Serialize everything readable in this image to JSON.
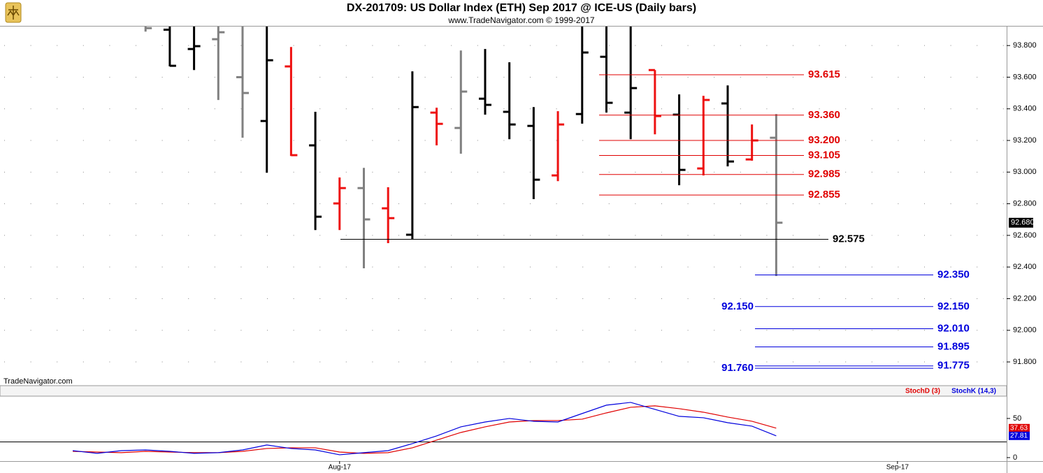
{
  "chart_data": [
    {
      "type": "ohlc",
      "title": "DX-201709:  US Dollar Index (ETH) Sep 2017 @ ICE-US  (Daily bars)",
      "subtitle": "www.TradeNavigator.com © 1999-2017",
      "watermark": "TradeNavigator.com",
      "ylim": [
        91.65,
        93.92
      ],
      "yticks": [
        {
          "value": 91.8,
          "label": "91.800"
        },
        {
          "value": 92.0,
          "label": "92.000"
        },
        {
          "value": 92.2,
          "label": "92.200"
        },
        {
          "value": 92.4,
          "label": "92.400"
        },
        {
          "value": 92.6,
          "label": "92.600"
        },
        {
          "value": 92.8,
          "label": "92.800"
        },
        {
          "value": 93.0,
          "label": "93.000"
        },
        {
          "value": 93.2,
          "label": "93.200"
        },
        {
          "value": 93.4,
          "label": "93.400"
        },
        {
          "value": 93.6,
          "label": "93.600"
        },
        {
          "value": 93.8,
          "label": "93.800"
        }
      ],
      "xlim": [
        -3,
        38.5
      ],
      "xticks": [
        {
          "value": 11,
          "label": "Aug-17"
        },
        {
          "value": 34,
          "label": "Sep-17"
        }
      ],
      "grid": true,
      "open": [
        null,
        null,
        null,
        93.93,
        93.9,
        93.778,
        93.84,
        93.6,
        93.323,
        93.668,
        93.169,
        92.802,
        92.899,
        92.771,
        92.604,
        93.376,
        93.279,
        93.464,
        93.381,
        93.292,
        92.979,
        93.367,
        93.729,
        93.376,
        93.645,
        93.363,
        93.023,
        93.434,
        93.08,
        93.217
      ],
      "high": [
        null,
        null,
        null,
        93.95,
        93.95,
        93.95,
        93.95,
        93.95,
        93.95,
        93.791,
        93.381,
        92.966,
        93.027,
        92.904,
        93.637,
        93.407,
        93.769,
        93.778,
        93.694,
        93.411,
        93.385,
        93.95,
        93.95,
        93.95,
        93.645,
        93.491,
        93.482,
        93.548,
        93.301,
        93.367
      ],
      "low": [
        null,
        null,
        null,
        93.888,
        93.668,
        93.645,
        93.456,
        93.217,
        92.996,
        93.102,
        92.634,
        92.634,
        92.392,
        92.551,
        92.577,
        93.169,
        93.116,
        93.363,
        93.208,
        92.829,
        92.943,
        93.306,
        93.376,
        93.208,
        93.239,
        92.917,
        92.979,
        93.036,
        93.072,
        92.343
      ],
      "close": [
        null,
        null,
        null,
        93.91,
        93.672,
        93.796,
        93.884,
        93.5,
        93.707,
        93.107,
        92.718,
        92.899,
        92.701,
        92.709,
        93.411,
        93.305,
        93.509,
        93.425,
        93.301,
        92.952,
        93.301,
        93.756,
        93.438,
        93.531,
        93.354,
        93.014,
        93.456,
        93.067,
        93.2,
        92.68
      ],
      "colors": [
        null,
        null,
        null,
        "#808080",
        "#000000",
        "#000000",
        "#808080",
        "#808080",
        "#000000",
        "#ee1111",
        "#000000",
        "#ee1111",
        "#808080",
        "#ee1111",
        "#000000",
        "#ee1111",
        "#808080",
        "#000000",
        "#000000",
        "#000000",
        "#ee1111",
        "#000000",
        "#000000",
        "#000000",
        "#ee1111",
        "#000000",
        "#ee1111",
        "#000000",
        "#ee1111",
        "#808080"
      ],
      "last_label": "92.680",
      "levels": [
        {
          "value": 93.615,
          "label": "93.615",
          "color": "#e00000"
        },
        {
          "value": 93.36,
          "label": "93.360",
          "color": "#e00000"
        },
        {
          "value": 93.2,
          "label": "93.200",
          "color": "#e00000"
        },
        {
          "value": 93.105,
          "label": "93.105",
          "color": "#e00000"
        },
        {
          "value": 92.985,
          "label": "92.985",
          "color": "#e00000"
        },
        {
          "value": 92.855,
          "label": "92.855",
          "color": "#e00000"
        },
        {
          "value": 92.575,
          "label": "92.575",
          "color": "#000000"
        },
        {
          "value": 92.35,
          "label": "92.350",
          "color": "#0000dd"
        },
        {
          "value": 92.15,
          "label": "92.150",
          "color": "#0000dd"
        },
        {
          "value": 92.01,
          "label": "92.010",
          "color": "#0000dd"
        },
        {
          "value": 91.895,
          "label": "91.895",
          "color": "#0000dd"
        },
        {
          "value": 91.775,
          "label": "91.775",
          "color": "#0000dd"
        },
        {
          "value": 91.76,
          "label": "91.760",
          "color": "#0000dd"
        }
      ]
    },
    {
      "type": "line",
      "ylim": [
        -4.5,
        78.5
      ],
      "yticks": [
        0,
        50
      ],
      "hlines": [
        20
      ],
      "series": [
        {
          "name": "StochD (3)",
          "color": "#e00000",
          "values": [
            8.0,
            7.1,
            6.3,
            8.0,
            7.1,
            6.3,
            6.3,
            8.0,
            11.6,
            12.5,
            12.5,
            7.1,
            5.4,
            6.3,
            12.5,
            22.3,
            32.1,
            39.3,
            45.5,
            47.3,
            47.3,
            49.1,
            57.1,
            64.3,
            66.1,
            62.5,
            58.0,
            51.8,
            46.4,
            37.63
          ]
        },
        {
          "name": "StochK (14,3)",
          "color": "#0000dd",
          "values": [
            8.9,
            5.4,
            8.9,
            9.8,
            8.0,
            5.4,
            6.3,
            9.8,
            16.1,
            11.6,
            9.8,
            3.6,
            6.3,
            8.9,
            17.9,
            27.7,
            39.3,
            45.5,
            50.0,
            46.4,
            45.5,
            56.3,
            67.0,
            70.5,
            61.6,
            52.7,
            50.9,
            44.6,
            40.2,
            27.81
          ]
        }
      ]
    }
  ]
}
